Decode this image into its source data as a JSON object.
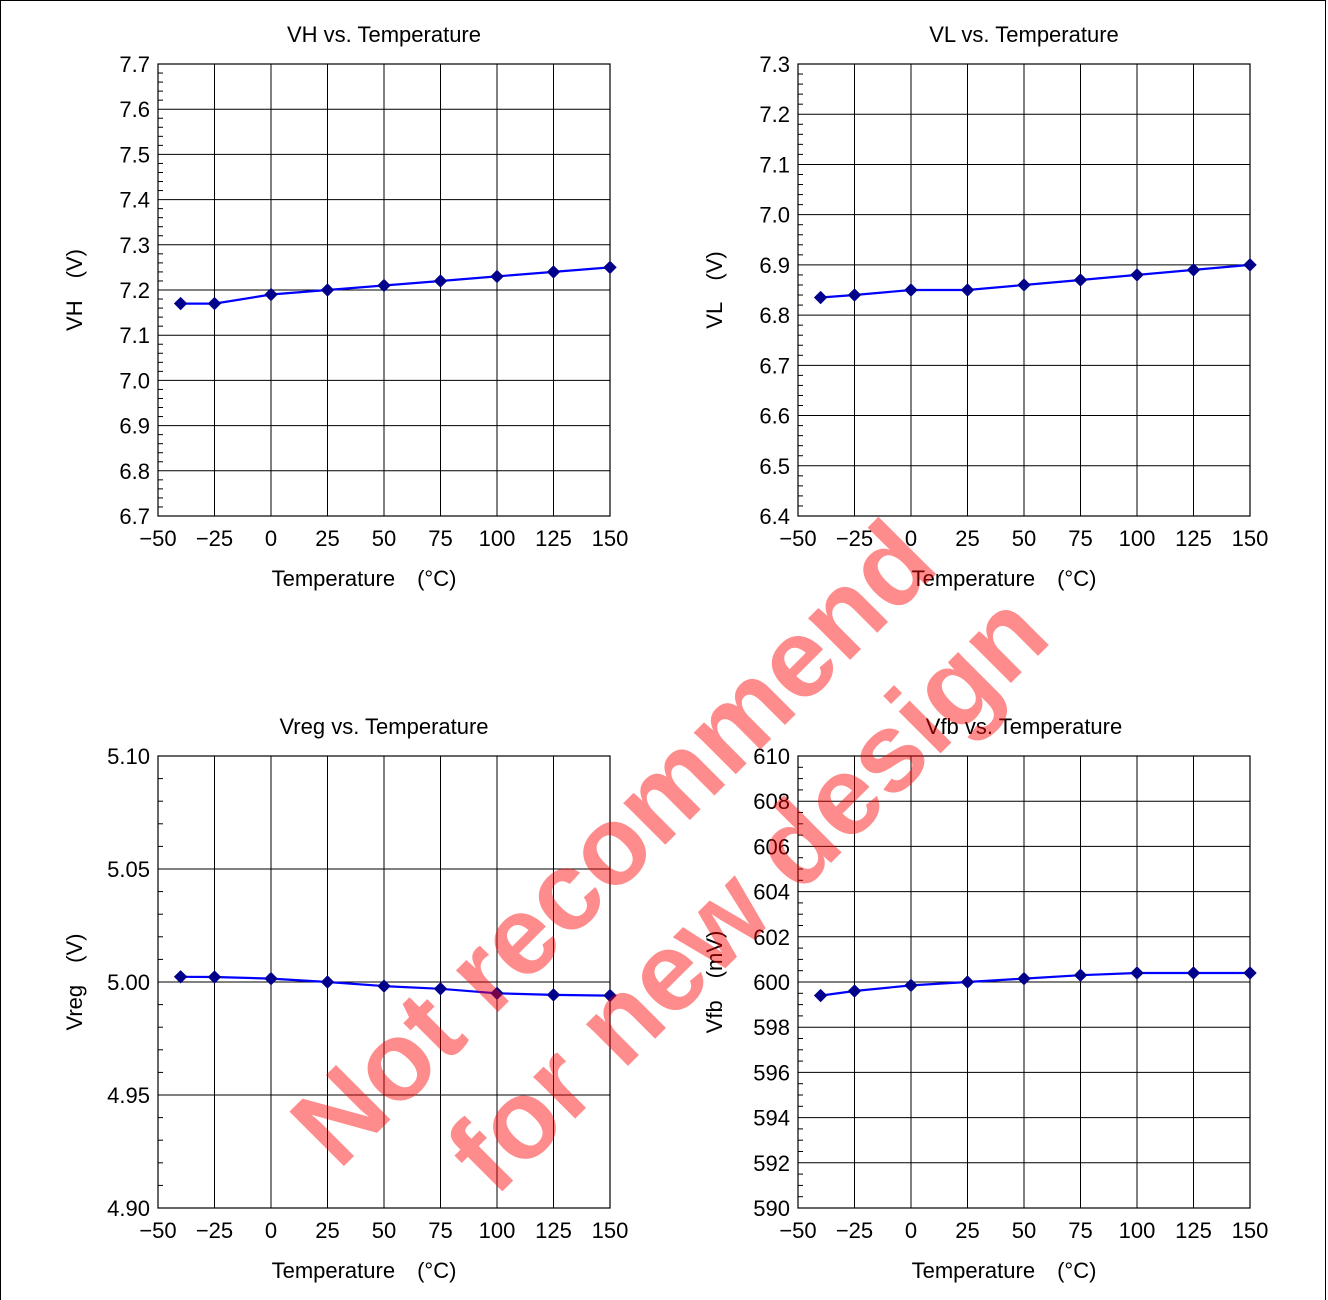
{
  "watermark": {
    "line1": "Not recommend",
    "line2": "for new design",
    "color": "#ff0000"
  },
  "colors": {
    "series_line": "#0000ff",
    "marker": "#00008b"
  },
  "chart_data": [
    {
      "id": "vh",
      "type": "line",
      "title": "VH vs. Temperature",
      "xlabel": "Temperature　(°C)",
      "ylabel": "VH　(V)",
      "xlim": [
        -50,
        150
      ],
      "ylim": [
        6.7,
        7.7
      ],
      "xticks": [
        -50,
        -25,
        0,
        25,
        50,
        75,
        100,
        125,
        150
      ],
      "xtick_labels": [
        "−50",
        "−25",
        "0",
        "25",
        "50",
        "75",
        "100",
        "125",
        "150"
      ],
      "yticks": [
        6.7,
        6.8,
        6.9,
        7.0,
        7.1,
        7.2,
        7.3,
        7.4,
        7.5,
        7.6,
        7.7
      ],
      "ytick_labels": [
        "6.7",
        "6.8",
        "6.9",
        "7.0",
        "7.1",
        "7.2",
        "7.3",
        "7.4",
        "7.5",
        "7.6",
        "7.7"
      ],
      "minor_y_per_major": 5,
      "grid": true,
      "x": [
        -40,
        -25,
        0,
        25,
        50,
        75,
        100,
        125,
        150
      ],
      "y": [
        7.17,
        7.17,
        7.19,
        7.2,
        7.21,
        7.22,
        7.23,
        7.24,
        7.25
      ]
    },
    {
      "id": "vl",
      "type": "line",
      "title": "VL vs. Temperature",
      "xlabel": "Temperature　(°C)",
      "ylabel": "VL　(V)",
      "xlim": [
        -50,
        150
      ],
      "ylim": [
        6.4,
        7.3
      ],
      "xticks": [
        -50,
        -25,
        0,
        25,
        50,
        75,
        100,
        125,
        150
      ],
      "xtick_labels": [
        "−50",
        "−25",
        "0",
        "25",
        "50",
        "75",
        "100",
        "125",
        "150"
      ],
      "yticks": [
        6.4,
        6.5,
        6.6,
        6.7,
        6.8,
        6.9,
        7.0,
        7.1,
        7.2,
        7.3
      ],
      "ytick_labels": [
        "6.4",
        "6.5",
        "6.6",
        "6.7",
        "6.8",
        "6.9",
        "7.0",
        "7.1",
        "7.2",
        "7.3"
      ],
      "minor_y_per_major": 5,
      "grid": true,
      "x": [
        -40,
        -25,
        0,
        25,
        50,
        75,
        100,
        125,
        150
      ],
      "y": [
        6.835,
        6.84,
        6.85,
        6.85,
        6.86,
        6.87,
        6.88,
        6.89,
        6.9
      ]
    },
    {
      "id": "vreg",
      "type": "line",
      "title": "Vreg vs. Temperature",
      "xlabel": "Temperature　(°C)",
      "ylabel": "Vreg　(V)",
      "xlim": [
        -50,
        150
      ],
      "ylim": [
        4.9,
        5.1
      ],
      "xticks": [
        -50,
        -25,
        0,
        25,
        50,
        75,
        100,
        125,
        150
      ],
      "xtick_labels": [
        "−50",
        "−25",
        "0",
        "25",
        "50",
        "75",
        "100",
        "125",
        "150"
      ],
      "yticks": [
        4.9,
        4.95,
        5.0,
        5.05,
        5.1
      ],
      "ytick_labels": [
        "4.90",
        "4.95",
        "5.00",
        "5.05",
        "5.10"
      ],
      "minor_y_per_major": 5,
      "grid": true,
      "x": [
        -40,
        -25,
        0,
        25,
        50,
        75,
        100,
        125,
        150
      ],
      "y": [
        5.0023,
        5.0022,
        5.0015,
        5.0,
        4.9982,
        4.997,
        4.995,
        4.9943,
        4.994
      ]
    },
    {
      "id": "vfb",
      "type": "line",
      "title": "Vfb vs. Temperature",
      "xlabel": "Temperature　(°C)",
      "ylabel": "Vfb　(mV)",
      "xlim": [
        -50,
        150
      ],
      "ylim": [
        590,
        610
      ],
      "xticks": [
        -50,
        -25,
        0,
        25,
        50,
        75,
        100,
        125,
        150
      ],
      "xtick_labels": [
        "−50",
        "−25",
        "0",
        "25",
        "50",
        "75",
        "100",
        "125",
        "150"
      ],
      "yticks": [
        590,
        592,
        594,
        596,
        598,
        600,
        602,
        604,
        606,
        608,
        610
      ],
      "ytick_labels": [
        "590",
        "592",
        "594",
        "596",
        "598",
        "600",
        "602",
        "604",
        "606",
        "608",
        "610"
      ],
      "minor_y_per_major": 4,
      "grid": true,
      "x": [
        -40,
        -25,
        0,
        25,
        50,
        75,
        100,
        125,
        150
      ],
      "y": [
        599.4,
        599.6,
        599.85,
        600.0,
        600.15,
        600.3,
        600.4,
        600.4,
        600.4
      ]
    }
  ]
}
